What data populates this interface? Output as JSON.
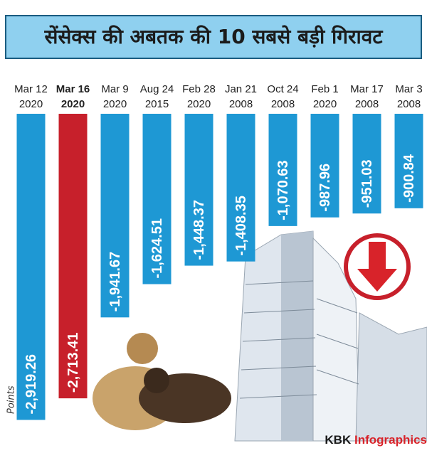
{
  "chart_data": {
    "type": "bar",
    "title": "सेंसेक्स की अबतक की 10 सबसे बड़ी गिरावट",
    "categories": [
      "Mar 12",
      "Mar 16",
      "Mar 9",
      "Aug 24",
      "Feb 28",
      "Jan 21",
      "Oct 24",
      "Feb 1",
      "Mar 17",
      "Mar 3"
    ],
    "category_years": [
      "2020",
      "2020",
      "2020",
      "2015",
      "2020",
      "2008",
      "2008",
      "2020",
      "2008",
      "2008"
    ],
    "values": [
      -2919.26,
      -2713.41,
      -1941.67,
      -1624.51,
      -1448.37,
      -1408.35,
      -1070.63,
      -987.96,
      -951.03,
      -900.84
    ],
    "value_labels": [
      "-2,919.26",
      "-2,713.41",
      "-1,941.67",
      "-1,624.51",
      "-1,448.37",
      "-1,408.35",
      "-1,070.63",
      "-987.96",
      "-951.03",
      "-900.84"
    ],
    "colors": [
      "#1e98d4",
      "#c7202b",
      "#1e98d4",
      "#1e98d4",
      "#1e98d4",
      "#1e98d4",
      "#1e98d4",
      "#1e98d4",
      "#1e98d4",
      "#1e98d4"
    ],
    "highlight_index": 1,
    "ylim": [
      -2950,
      0
    ],
    "y_label": "Points",
    "brand": "KBK",
    "brand_highlight": "Infographics"
  }
}
